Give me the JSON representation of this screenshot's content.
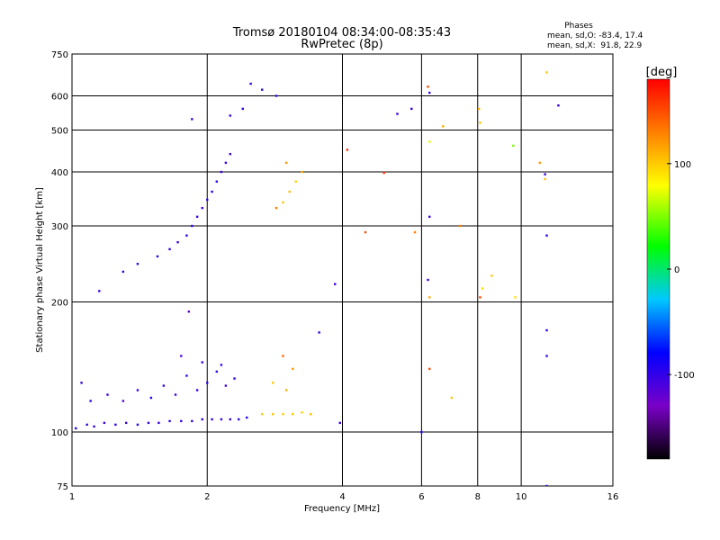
{
  "chart_data": {
    "type": "scatter",
    "title": "Tromsø 20180104 08:34:00-08:35:43",
    "subtitle": "RwPretec (8p)",
    "xlabel": "Frequency [MHz]",
    "ylabel": "Stationary phase Virtual Height [km]",
    "x_scale": "log",
    "y_scale": "log",
    "xlim": [
      1,
      16
    ],
    "ylim": [
      75,
      750
    ],
    "x_ticks": [
      1,
      2,
      4,
      6,
      8,
      10,
      16
    ],
    "y_ticks": [
      75,
      100,
      200,
      300,
      400,
      500,
      600,
      750
    ],
    "grid": true,
    "stats": {
      "header": "Phases",
      "o_line": "mean, sd,O: -83.4, 17.4",
      "x_line": "mean, sd,X:  91.8, 22.9"
    },
    "colorbar": {
      "label": "[deg]",
      "range": [
        -180,
        180
      ],
      "ticks": [
        100,
        0,
        -100
      ],
      "colors": [
        "#000000",
        "#7a00c8",
        "#0000ff",
        "#00c8ff",
        "#00ff00",
        "#ffff00",
        "#ff8000",
        "#ff0000"
      ]
    },
    "series": [
      {
        "points": [
          [
            1.02,
            102,
            -95
          ],
          [
            1.08,
            104,
            -100
          ],
          [
            1.12,
            103,
            -98
          ],
          [
            1.18,
            105,
            -102
          ],
          [
            1.25,
            104,
            -97
          ],
          [
            1.32,
            105,
            -100
          ],
          [
            1.4,
            104,
            -96
          ],
          [
            1.48,
            105,
            -99
          ],
          [
            1.56,
            105,
            -101
          ],
          [
            1.65,
            106,
            -98
          ],
          [
            1.75,
            106,
            -100
          ],
          [
            1.85,
            106,
            -97
          ],
          [
            1.95,
            107,
            -99
          ],
          [
            2.05,
            107,
            -101
          ],
          [
            2.15,
            107,
            -98
          ],
          [
            2.25,
            107,
            -100
          ],
          [
            2.35,
            107,
            -96
          ],
          [
            2.45,
            108,
            -95
          ],
          [
            1.1,
            118,
            -100
          ],
          [
            1.2,
            122,
            -105
          ],
          [
            1.3,
            118,
            -110
          ],
          [
            1.4,
            125,
            -100
          ],
          [
            1.5,
            120,
            -95
          ],
          [
            1.6,
            128,
            -100
          ],
          [
            1.7,
            122,
            -108
          ],
          [
            1.8,
            135,
            -100
          ],
          [
            1.9,
            125,
            -102
          ],
          [
            2.0,
            130,
            -98
          ],
          [
            2.1,
            138,
            -100
          ],
          [
            2.2,
            128,
            -104
          ],
          [
            2.3,
            133,
            -100
          ],
          [
            1.75,
            150,
            -110
          ],
          [
            1.95,
            145,
            -100
          ],
          [
            2.15,
            143,
            -102
          ],
          [
            1.82,
            190,
            -120
          ],
          [
            1.05,
            130,
            -100
          ],
          [
            1.4,
            245,
            -100
          ],
          [
            1.55,
            255,
            -98
          ],
          [
            1.65,
            265,
            -100
          ],
          [
            1.72,
            275,
            -102
          ],
          [
            1.8,
            285,
            -100
          ],
          [
            1.85,
            300,
            -98
          ],
          [
            1.9,
            315,
            -100
          ],
          [
            1.95,
            330,
            -102
          ],
          [
            2.0,
            345,
            -100
          ],
          [
            2.05,
            360,
            -98
          ],
          [
            2.1,
            380,
            -100
          ],
          [
            2.15,
            400,
            -102
          ],
          [
            2.2,
            420,
            -100
          ],
          [
            2.25,
            440,
            -104
          ],
          [
            1.3,
            235,
            -100
          ],
          [
            1.15,
            212,
            -100
          ],
          [
            1.85,
            530,
            -100
          ],
          [
            2.25,
            540,
            -100
          ],
          [
            2.4,
            560,
            -100
          ],
          [
            2.5,
            640,
            -100
          ],
          [
            2.65,
            620,
            -100
          ],
          [
            2.85,
            600,
            -100
          ],
          [
            2.65,
            110,
            100
          ],
          [
            2.8,
            110,
            102
          ],
          [
            2.95,
            110,
            98
          ],
          [
            3.1,
            110,
            100
          ],
          [
            3.25,
            111,
            96
          ],
          [
            3.4,
            110,
            104
          ],
          [
            2.8,
            130,
            100
          ],
          [
            3.0,
            125,
            110
          ],
          [
            3.1,
            140,
            120
          ],
          [
            2.95,
            150,
            140
          ],
          [
            2.95,
            340,
            100
          ],
          [
            3.05,
            360,
            105
          ],
          [
            3.15,
            380,
            95
          ],
          [
            3.25,
            400,
            110
          ],
          [
            3.0,
            420,
            120
          ],
          [
            2.85,
            330,
            130
          ],
          [
            3.55,
            170,
            -100
          ],
          [
            3.85,
            220,
            -100
          ],
          [
            3.95,
            105,
            -100
          ],
          [
            4.1,
            450,
            160
          ],
          [
            4.5,
            290,
            150
          ],
          [
            4.95,
            398,
            160
          ],
          [
            5.3,
            545,
            -100
          ],
          [
            5.7,
            560,
            -100
          ],
          [
            5.8,
            290,
            130
          ],
          [
            6.0,
            100,
            -100
          ],
          [
            6.2,
            630,
            150
          ],
          [
            6.25,
            610,
            -100
          ],
          [
            6.25,
            315,
            -100
          ],
          [
            6.25,
            470,
            70
          ],
          [
            6.25,
            205,
            110
          ],
          [
            6.25,
            140,
            150
          ],
          [
            6.2,
            225,
            -100
          ],
          [
            6.7,
            510,
            110
          ],
          [
            7.3,
            300,
            130
          ],
          [
            7.0,
            120,
            100
          ],
          [
            8.05,
            560,
            110
          ],
          [
            8.1,
            520,
            100
          ],
          [
            8.1,
            205,
            150
          ],
          [
            8.2,
            215,
            90
          ],
          [
            8.6,
            230,
            100
          ],
          [
            9.6,
            460,
            50
          ],
          [
            9.7,
            205,
            90
          ],
          [
            11.0,
            420,
            120
          ],
          [
            11.3,
            385,
            100
          ],
          [
            11.3,
            395,
            -100
          ],
          [
            11.4,
            285,
            -100
          ],
          [
            11.4,
            150,
            -100
          ],
          [
            11.4,
            172,
            -100
          ],
          [
            11.4,
            75,
            -100
          ],
          [
            11.4,
            680,
            100
          ],
          [
            12.1,
            570,
            -100
          ]
        ]
      }
    ]
  }
}
